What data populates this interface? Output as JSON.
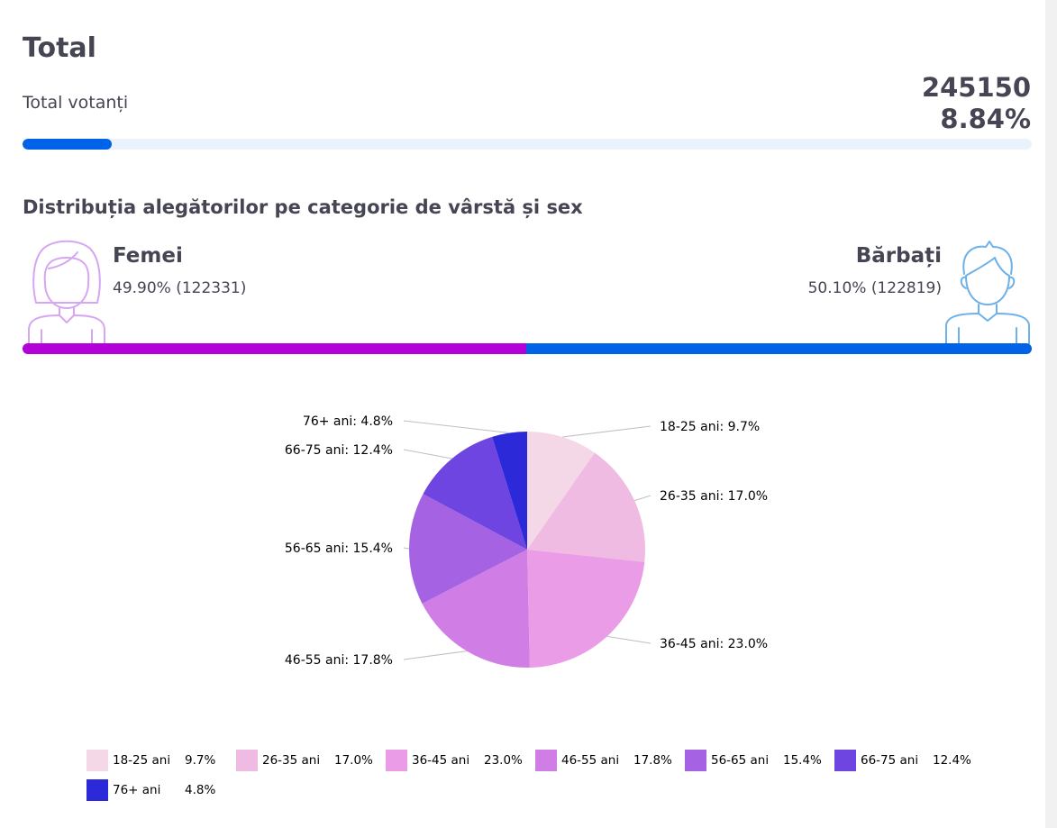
{
  "header": {
    "title": "Total",
    "total_label": "Total votanți",
    "total_count": "245150",
    "total_percent": "8.84%",
    "progress_fraction": 0.0884
  },
  "distribution": {
    "title": "Distribuția alegătorilor pe categorie de vârstă și sex",
    "female": {
      "label": "Femei",
      "value": "49.90% (122331)",
      "fraction": 0.499
    },
    "male": {
      "label": "Bărbați",
      "value": "50.10% (122819)",
      "fraction": 0.501
    }
  },
  "colors": {
    "female_bar": "#b300d9",
    "male_bar": "#0062e6",
    "progress": "#0062e6",
    "female_icon": "#d7a6f2",
    "male_icon": "#6db1e8"
  },
  "chart_data": {
    "type": "pie",
    "categories": [
      "18-25 ani",
      "26-35 ani",
      "36-45 ani",
      "46-55 ani",
      "56-65 ani",
      "66-75 ani",
      "76+ ani"
    ],
    "values": [
      9.7,
      17.0,
      23.0,
      17.8,
      15.4,
      12.4,
      4.8
    ],
    "value_labels": [
      "9.7%",
      "17.0%",
      "23.0%",
      "17.8%",
      "15.4%",
      "12.4%",
      "4.8%"
    ],
    "slice_labels": [
      "18-25 ani: 9.7%",
      "26-35 ani: 17.0%",
      "36-45 ani: 23.0%",
      "46-55 ani: 17.8%",
      "56-65 ani: 15.4%",
      "66-75 ani: 12.4%",
      "76+ ani: 4.8%"
    ],
    "colors": [
      "#f5d8e8",
      "#efbbe2",
      "#ea9de6",
      "#d07ee6",
      "#a563e3",
      "#6e45e0",
      "#2c29d9"
    ],
    "legend_position": "bottom"
  }
}
